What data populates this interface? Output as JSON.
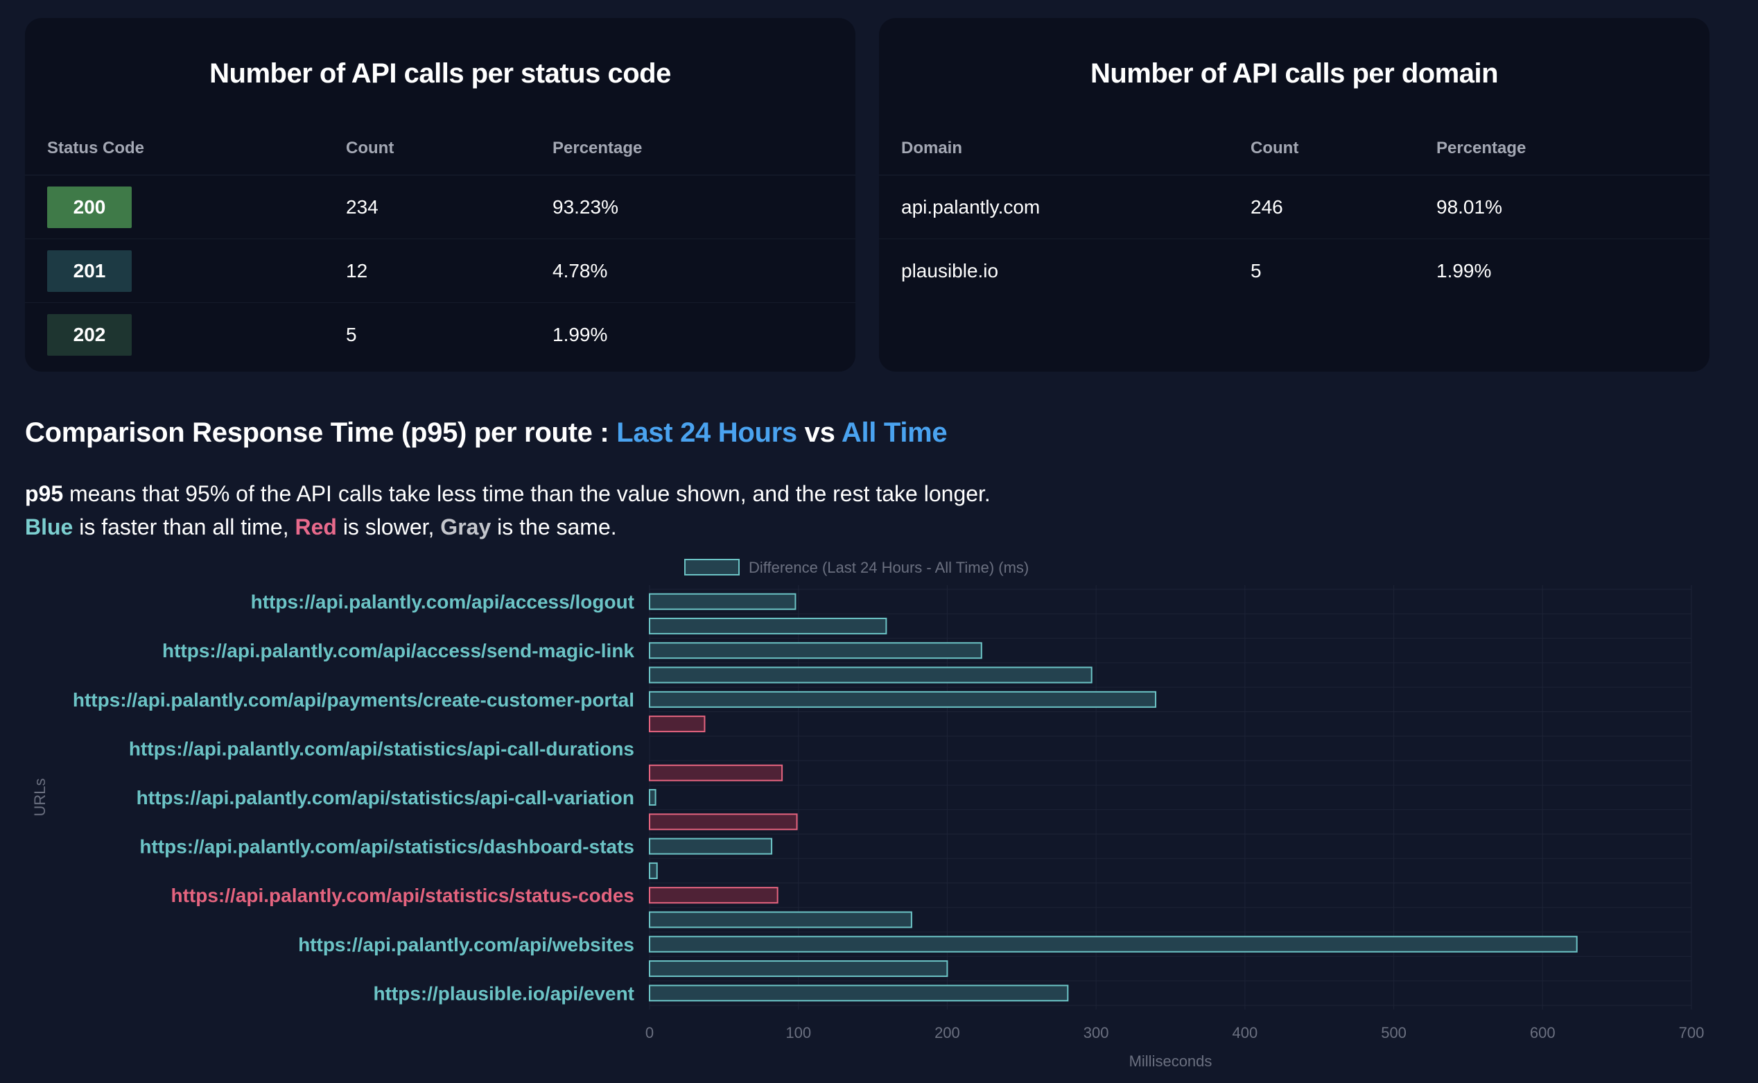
{
  "status_card": {
    "title": "Number of API calls per status code",
    "headers": [
      "Status Code",
      "Count",
      "Percentage"
    ],
    "rows": [
      {
        "code": "200",
        "count": "234",
        "percentage": "93.23%",
        "color": "#3f7a48"
      },
      {
        "code": "201",
        "count": "12",
        "percentage": "4.78%",
        "color": "#1d3a44"
      },
      {
        "code": "202",
        "count": "5",
        "percentage": "1.99%",
        "color": "#1e3530"
      }
    ]
  },
  "domain_card": {
    "title": "Number of API calls per domain",
    "headers": [
      "Domain",
      "Count",
      "Percentage"
    ],
    "rows": [
      {
        "domain": "api.palantly.com",
        "count": "246",
        "percentage": "98.01%"
      },
      {
        "domain": "plausible.io",
        "count": "5",
        "percentage": "1.99%"
      }
    ]
  },
  "comparison": {
    "title_prefix": "Comparison Response Time (p95) per route : ",
    "title_a": "Last 24 Hours",
    "title_vs": " vs ",
    "title_b": "All Time",
    "desc_bold": "p95",
    "desc_rest": " means that 95% of the API calls take less time than the value shown, and the rest take longer.",
    "blue_word": "Blue",
    "desc_2a": " is faster than all time, ",
    "red_word": "Red",
    "desc_2b": " is slower, ",
    "gray_word": "Gray",
    "desc_2c": " is the same."
  },
  "colors": {
    "faster_fill": "#24424f",
    "faster_stroke": "#6cc4c6",
    "slower_fill": "#4f2236",
    "slower_stroke": "#e5647f",
    "label_blue": "#6cc4c6",
    "label_red": "#e5647f",
    "grid": "#1d2336",
    "axis_text": "#6b7080"
  },
  "chart_data": {
    "type": "bar",
    "orientation": "horizontal",
    "legend": "Difference (Last 24 Hours - All Time) (ms)",
    "legend_position": "top-center",
    "xlabel": "Milliseconds",
    "ylabel": "URLs",
    "xlim": [
      0,
      700
    ],
    "xticks": [
      0,
      100,
      200,
      300,
      400,
      500,
      600,
      700
    ],
    "tick_labels": [
      "0",
      "100",
      "200",
      "300",
      "400",
      "500",
      "600",
      "700"
    ],
    "categories": [
      "https://api.palantly.com/api/access/logout",
      "",
      "https://api.palantly.com/api/access/send-magic-link",
      "",
      "https://api.palantly.com/api/payments/create-customer-portal",
      "",
      "https://api.palantly.com/api/statistics/api-call-durations",
      "",
      "https://api.palantly.com/api/statistics/api-call-variation",
      "",
      "https://api.palantly.com/api/statistics/dashboard-stats",
      "",
      "https://api.palantly.com/api/statistics/status-codes",
      "",
      "https://api.palantly.com/api/websites",
      "",
      "https://plausible.io/api/event"
    ],
    "label_status": [
      "faster",
      "",
      "faster",
      "",
      "faster",
      "",
      "faster",
      "",
      "faster",
      "",
      "faster",
      "",
      "slower",
      "",
      "faster",
      "",
      "faster"
    ],
    "values": [
      98,
      159,
      223,
      297,
      340,
      37,
      0,
      89,
      4,
      99,
      82,
      5,
      86,
      176,
      623,
      200,
      281
    ],
    "status": [
      "faster",
      "faster",
      "faster",
      "faster",
      "faster",
      "slower",
      "faster",
      "slower",
      "faster",
      "slower",
      "faster",
      "faster",
      "slower",
      "faster",
      "faster",
      "faster",
      "faster"
    ]
  }
}
